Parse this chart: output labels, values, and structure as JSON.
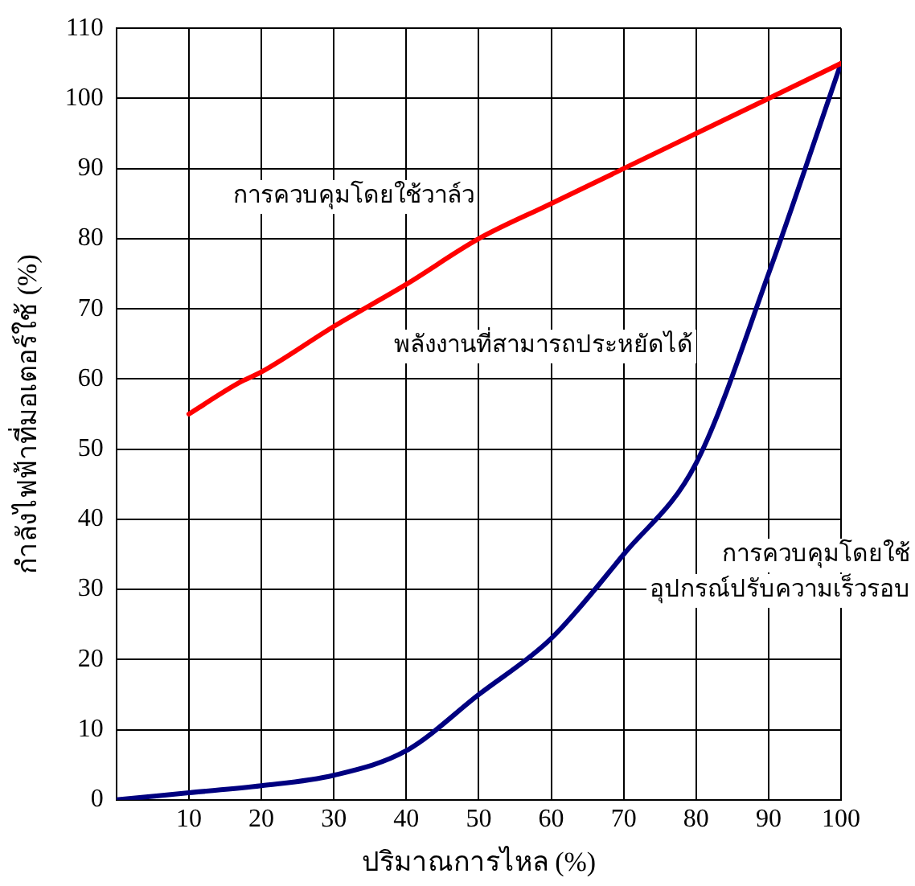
{
  "chart_data": {
    "type": "line",
    "xlabel": "ปริมาณการไหล (%)",
    "ylabel": "กำลังไฟฟ้าที่มอเตอร์ใช้ (%)",
    "x": [
      0,
      10,
      20,
      30,
      40,
      50,
      60,
      70,
      80,
      90,
      100
    ],
    "series": [
      {
        "color": "#ff0000",
        "x": [
          10,
          17,
          20,
          30,
          40,
          50,
          60,
          70,
          80,
          90,
          100
        ],
        "values": [
          55,
          59.5,
          61,
          67.5,
          73.5,
          80,
          85,
          90,
          95,
          100,
          105
        ]
      },
      {
        "color": "#000080",
        "values": [
          0,
          1,
          2,
          3.5,
          7,
          15,
          23,
          35,
          48,
          75,
          105
        ]
      }
    ],
    "xlim": [
      0,
      100
    ],
    "xticks": [
      10,
      20,
      30,
      40,
      50,
      60,
      70,
      80,
      90,
      100
    ],
    "ylim": [
      0,
      110
    ],
    "yticks": [
      0,
      10,
      20,
      30,
      40,
      50,
      60,
      70,
      80,
      90,
      100,
      110
    ],
    "grid": true,
    "legend": false,
    "marker": "none",
    "line_style": "solid",
    "annotations": [
      "การควบคุมโดยใช้วาล์ว",
      "พลังงานที่สามารถประหยัดได้",
      "การควบคุมโดยใช้\nอุปกรณ์ปรับความเร็วรอบ"
    ]
  }
}
